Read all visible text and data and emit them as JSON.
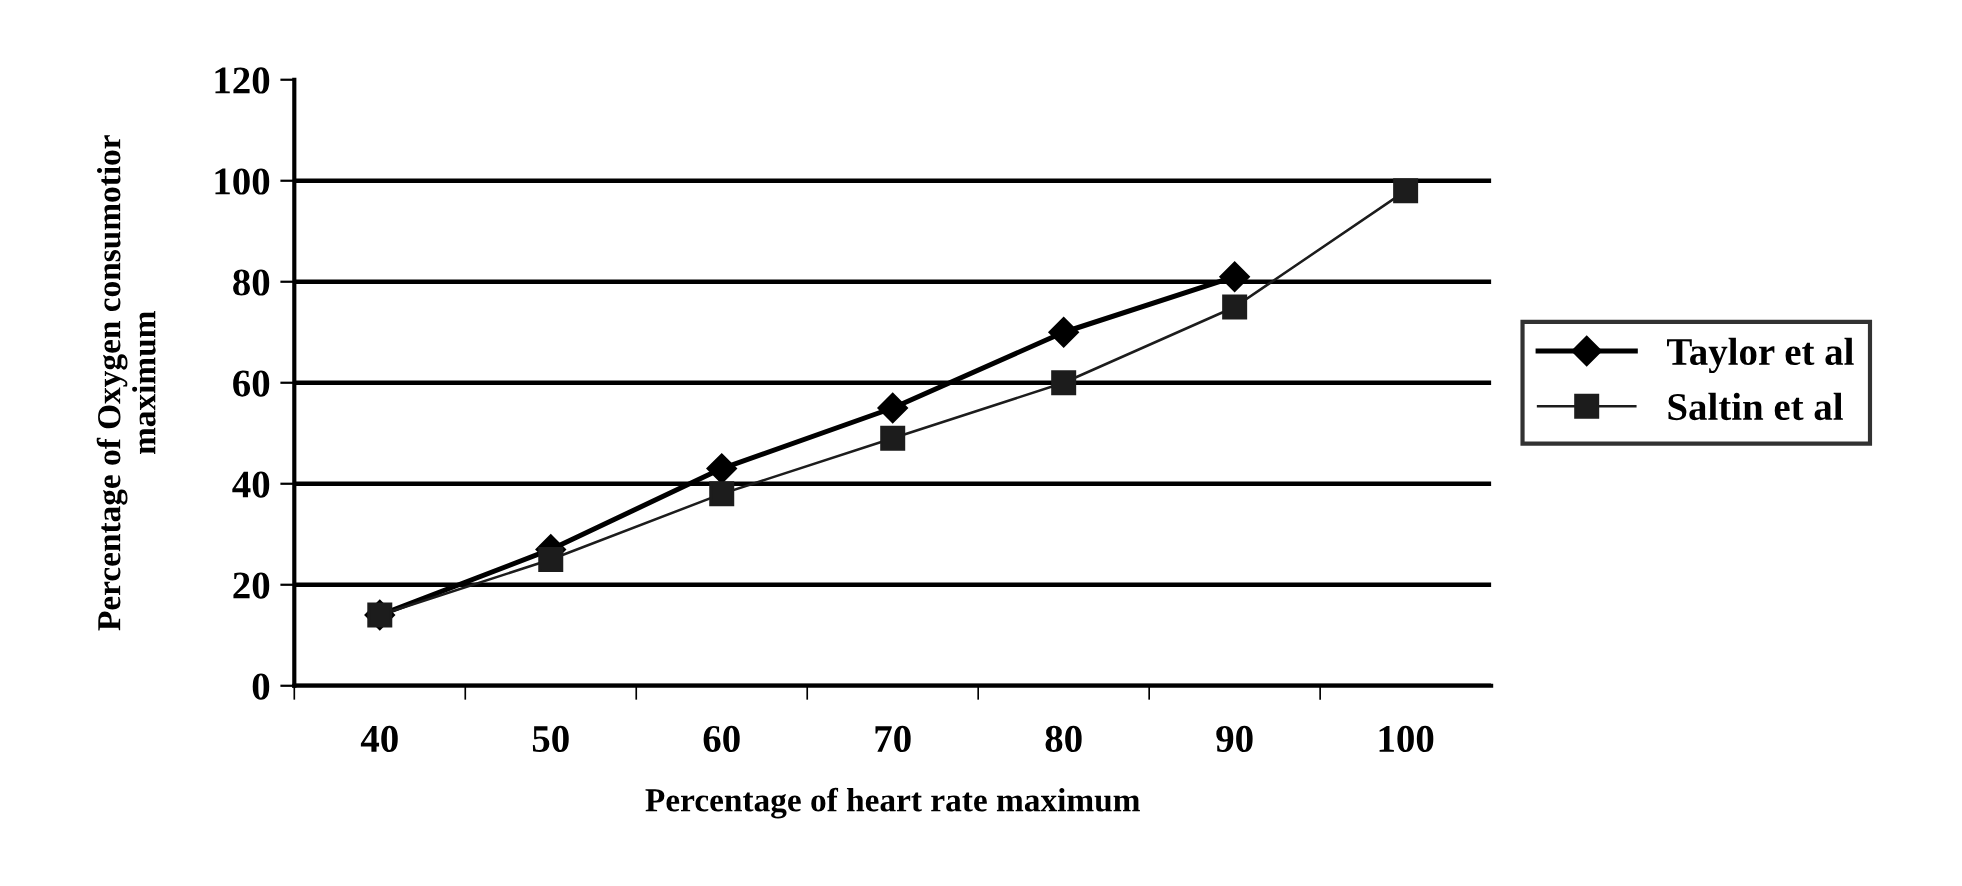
{
  "chart_data": {
    "type": "line",
    "xlabel": "Percentage of heart rate maximum",
    "ylabel": "Percentage of Oxygen consumotior\nmaximum",
    "categories": [
      "40",
      "50",
      "60",
      "70",
      "80",
      "90",
      "100"
    ],
    "series": [
      {
        "name": "Taylor et al",
        "color": "#000000",
        "marker": "diamond",
        "values": [
          14,
          27,
          43,
          55,
          70,
          81,
          null
        ]
      },
      {
        "name": "Saltin et al",
        "color": "#1c1c1c",
        "marker": "square",
        "values": [
          14,
          25,
          38,
          49,
          60,
          75,
          98
        ]
      }
    ],
    "ylim": [
      0,
      120
    ],
    "yticks": [
      0,
      20,
      40,
      60,
      80,
      100,
      120
    ],
    "grid": "y",
    "legend": "right",
    "line_style": "solid"
  }
}
